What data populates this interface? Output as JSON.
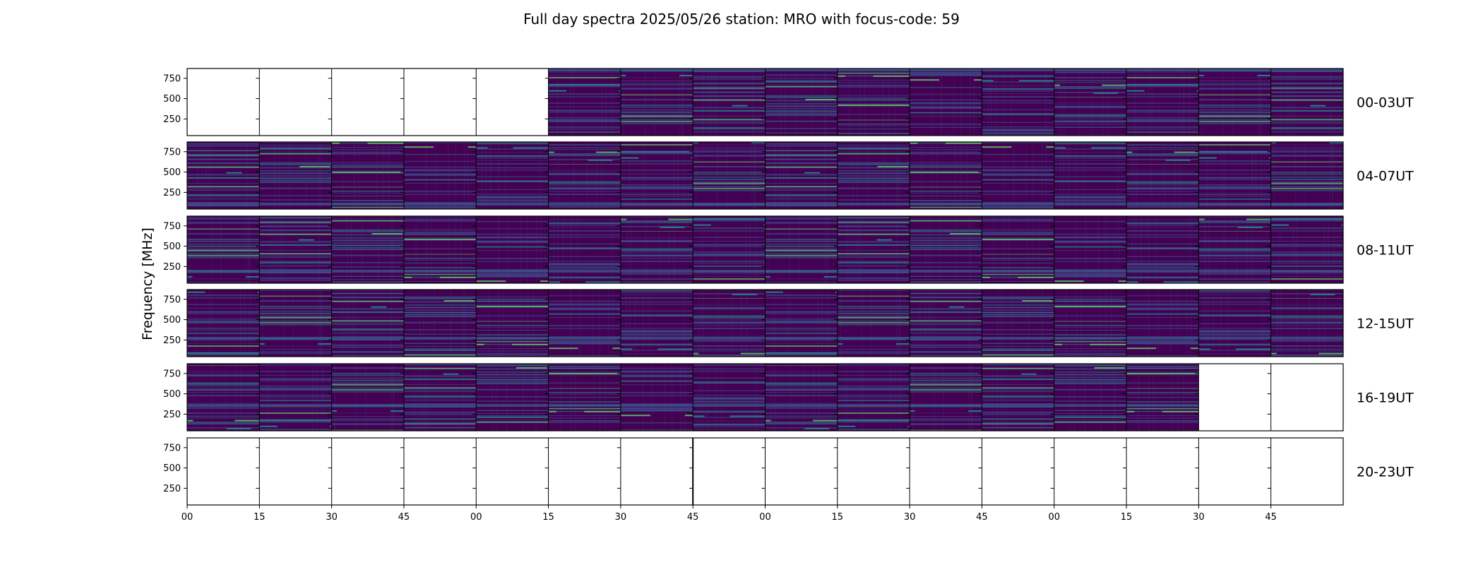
{
  "chart_data": {
    "type": "heatmap",
    "title": "Full day spectra 2025/05/26 station: MRO with focus-code: 59",
    "ylabel": "Frequency [MHz]",
    "xlabel": "",
    "yticks": [
      250,
      500,
      750
    ],
    "ylim": [
      45,
      870
    ],
    "xtick_labels": [
      "00",
      "15",
      "30",
      "45",
      "00",
      "15",
      "30",
      "45",
      "00",
      "15",
      "30",
      "45",
      "00",
      "15",
      "30",
      "45"
    ],
    "panels_per_row": 16,
    "panel_minutes": 15,
    "colormap": [
      "#440154",
      "#3b528b",
      "#21918c",
      "#5ec962",
      "#fde725"
    ],
    "rows": [
      {
        "label": "00-03UT",
        "available": [
          false,
          false,
          false,
          false,
          false,
          true,
          true,
          true,
          true,
          true,
          true,
          true,
          true,
          true,
          true,
          true
        ]
      },
      {
        "label": "04-07UT",
        "available": [
          true,
          true,
          true,
          true,
          true,
          true,
          true,
          true,
          true,
          true,
          true,
          true,
          true,
          true,
          true,
          true
        ]
      },
      {
        "label": "08-11UT",
        "available": [
          true,
          true,
          true,
          true,
          true,
          true,
          true,
          true,
          true,
          true,
          true,
          true,
          true,
          true,
          true,
          true
        ]
      },
      {
        "label": "12-15UT",
        "available": [
          true,
          true,
          true,
          true,
          true,
          true,
          true,
          true,
          true,
          true,
          true,
          true,
          true,
          true,
          true,
          true
        ]
      },
      {
        "label": "16-19UT",
        "available": [
          true,
          true,
          true,
          true,
          true,
          true,
          true,
          true,
          true,
          true,
          true,
          true,
          true,
          true,
          false,
          false
        ]
      },
      {
        "label": "20-23UT",
        "available": [
          false,
          false,
          false,
          false,
          false,
          false,
          false,
          false,
          false,
          false,
          false,
          false,
          false,
          false,
          false,
          false
        ]
      }
    ]
  }
}
